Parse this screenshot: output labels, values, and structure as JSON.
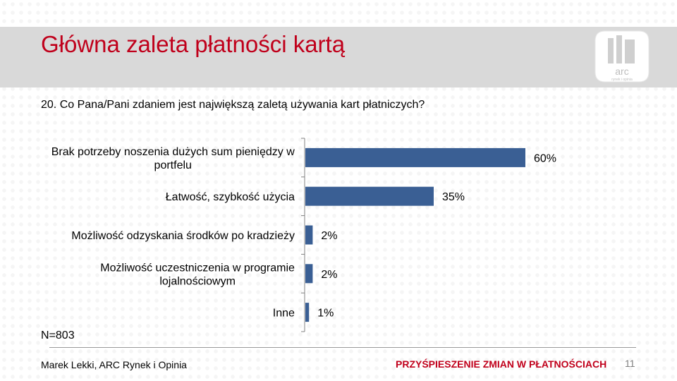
{
  "slide": {
    "title": "Główna zaleta płatności kartą",
    "question": "20. Co Pana/Pani zdaniem jest największą zaletą używania kart płatniczych?",
    "sample": "N=803",
    "footer_author": "Marek Lekki, ARC Rynek i Opinia",
    "footer_tagline": "PRZYŚPIESZENIE ZMIAN W PŁATNOŚCIACH",
    "page_number": "11",
    "logo_text": "arc",
    "logo_subtext": "rynek i opinia"
  },
  "chart_data": {
    "type": "bar",
    "orientation": "horizontal",
    "categories": [
      [
        "Brak potrzeby noszenia dużych sum pieniędzy w",
        "portfelu"
      ],
      [
        "Łatwość, szybkość użycia"
      ],
      [
        "Możliwość odzyskania środków po kradzieży"
      ],
      [
        "Możliwość uczestniczenia w programie",
        "lojalnościowym"
      ],
      [
        "Inne"
      ]
    ],
    "values": [
      60,
      35,
      2,
      2,
      1
    ],
    "value_labels": [
      "60%",
      "35%",
      "2%",
      "2%",
      "1%"
    ],
    "xlim": [
      0,
      60
    ],
    "bar_color": "#3a5f94",
    "grid": false,
    "legend": "none"
  }
}
